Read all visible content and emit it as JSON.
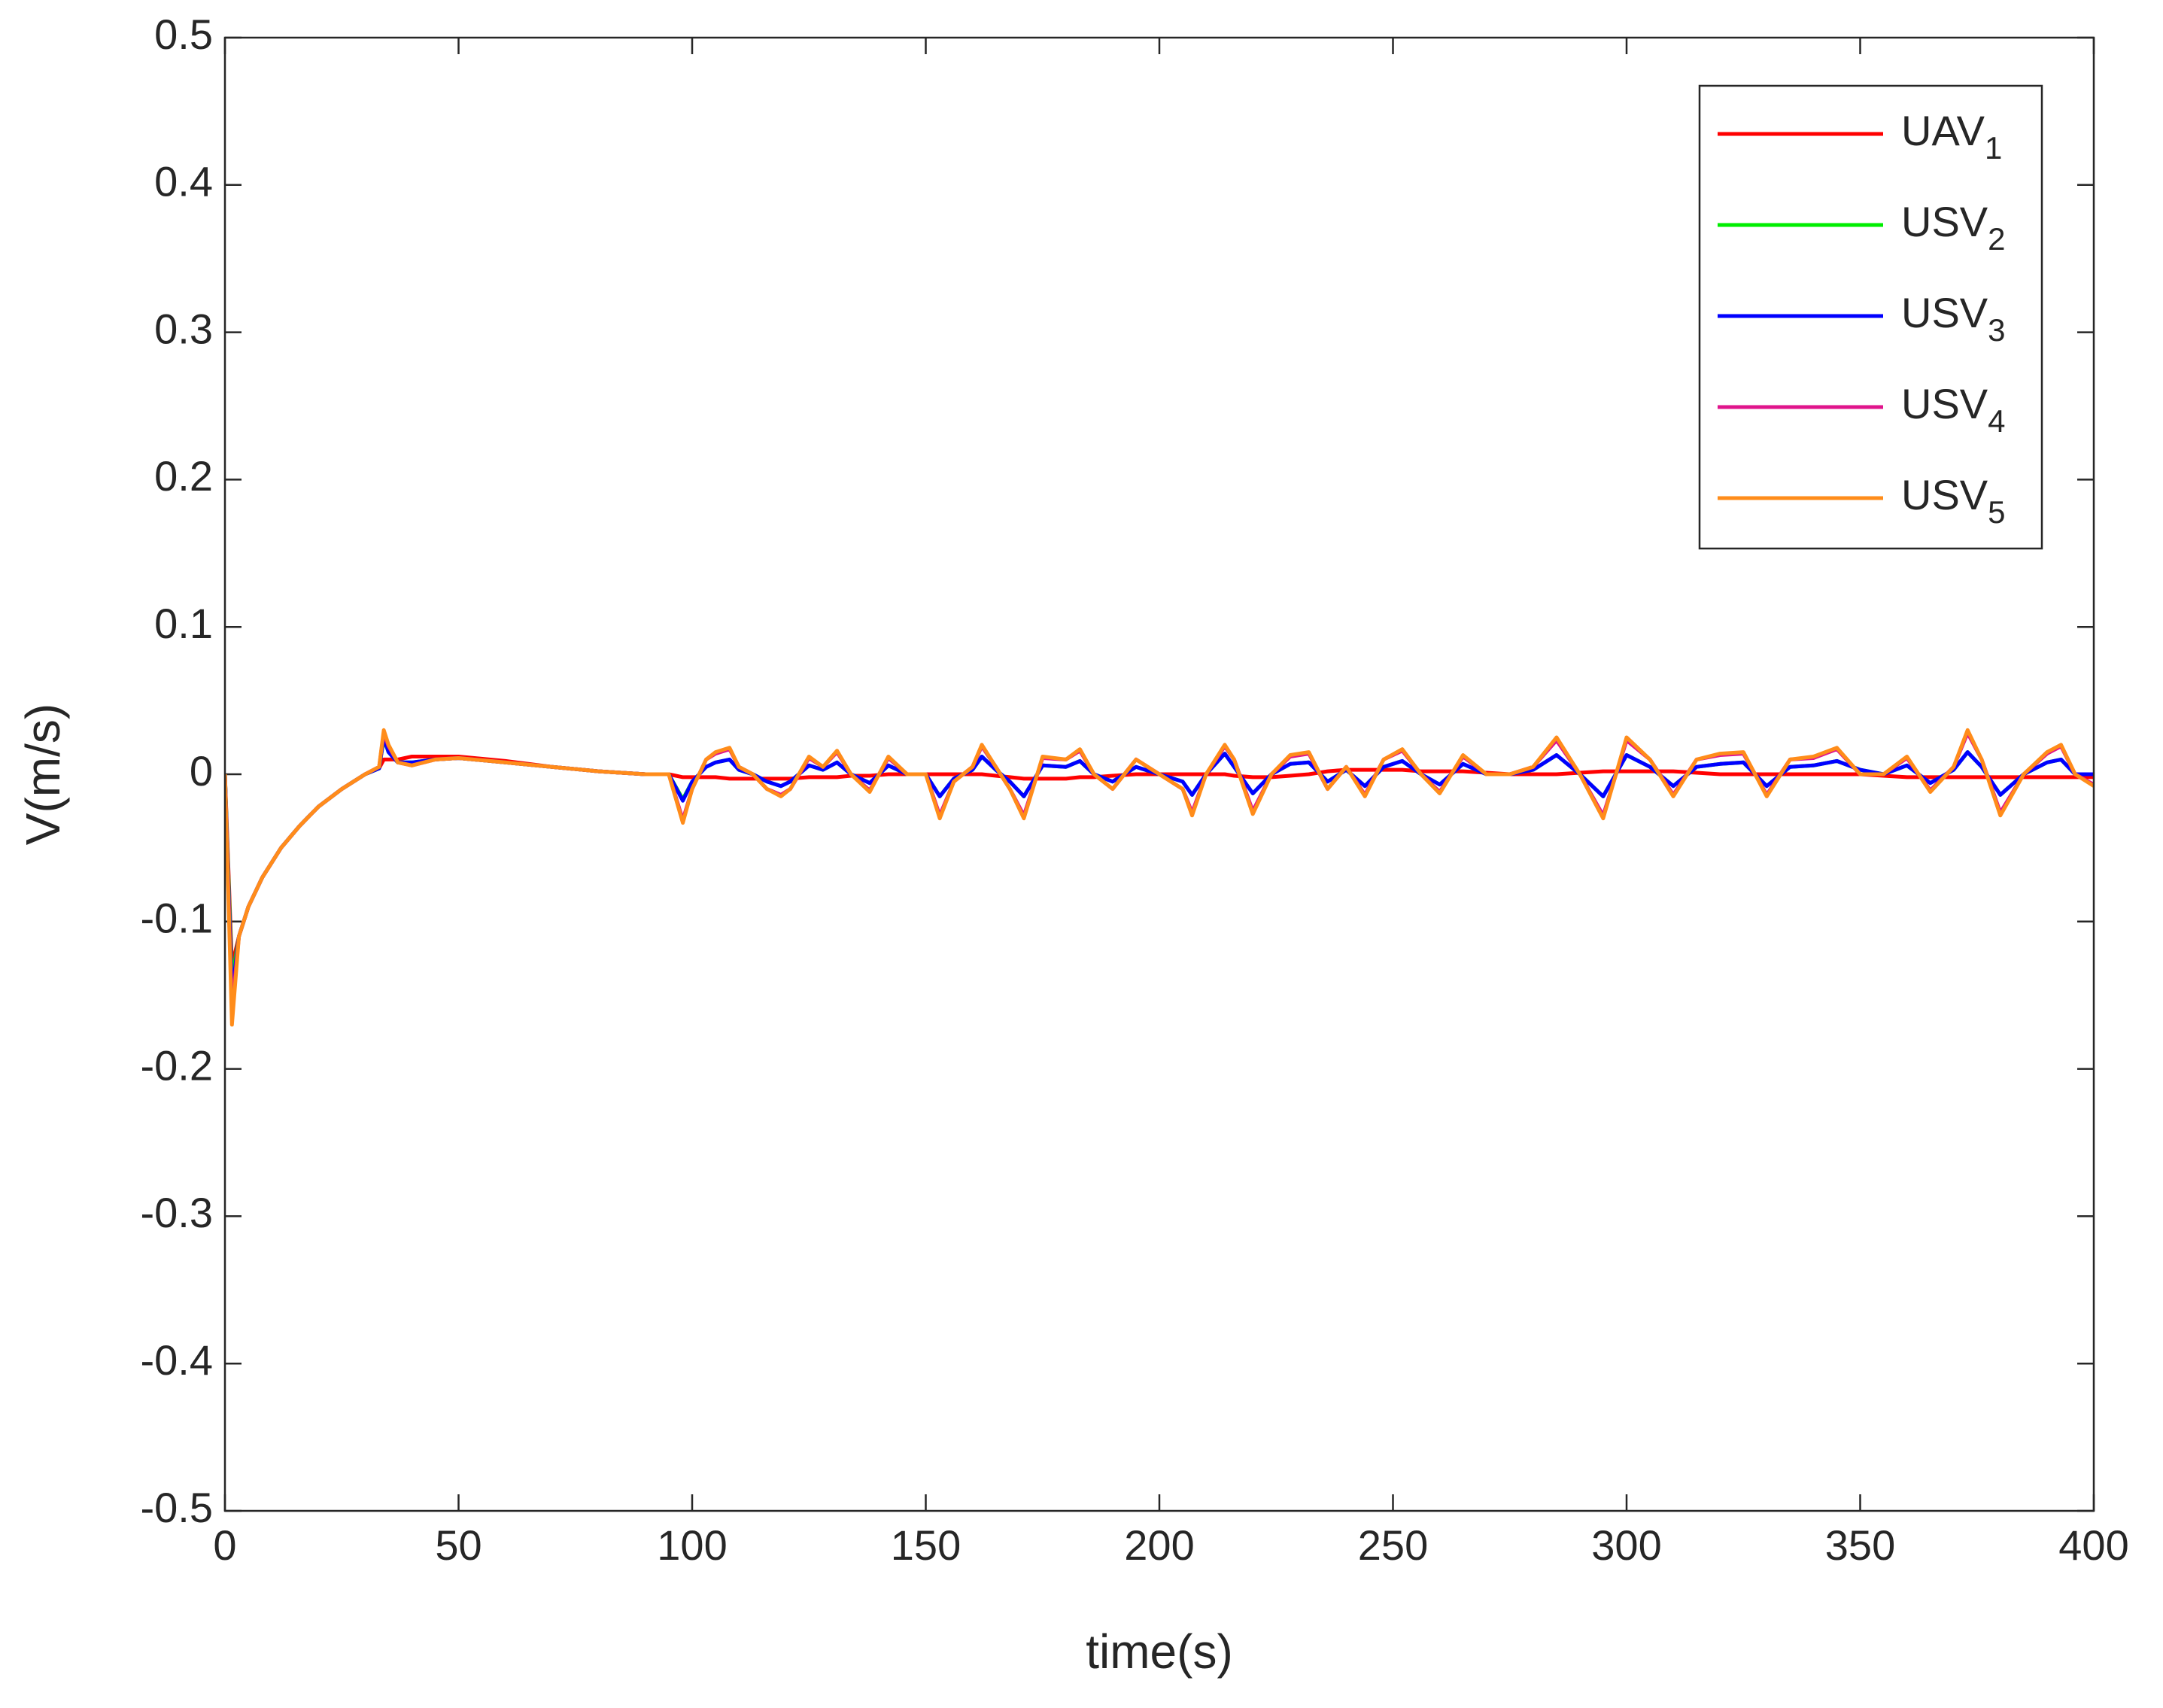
{
  "chart_data": {
    "type": "line",
    "xlabel": "time(s)",
    "ylabel": "V(m/s)",
    "xlim": [
      0,
      400
    ],
    "ylim": [
      -0.5,
      0.5
    ],
    "xticks": [
      0,
      50,
      100,
      150,
      200,
      250,
      300,
      350,
      400
    ],
    "yticks": [
      -0.5,
      -0.4,
      -0.3,
      -0.2,
      -0.1,
      0,
      0.1,
      0.2,
      0.3,
      0.4,
      0.5
    ],
    "legend": "upper right",
    "x": [
      0,
      1.5,
      3,
      5,
      8,
      12,
      16,
      20,
      25,
      30,
      33,
      34,
      35,
      37,
      40,
      45,
      50,
      60,
      70,
      80,
      90,
      95,
      98,
      100,
      103,
      105,
      108,
      110,
      113,
      116,
      119,
      121,
      125,
      128,
      131,
      134,
      138,
      142,
      146,
      150,
      153,
      156,
      160,
      162,
      165,
      168,
      171,
      175,
      180,
      183,
      186,
      190,
      195,
      200,
      205,
      207,
      210,
      214,
      216,
      220,
      224,
      228,
      232,
      236,
      240,
      244,
      248,
      252,
      256,
      260,
      265,
      270,
      275,
      280,
      285,
      290,
      295,
      300,
      305,
      310,
      315,
      320,
      325,
      330,
      335,
      340,
      345,
      350,
      355,
      360,
      365,
      370,
      373,
      376,
      380,
      385,
      390,
      393,
      396,
      400
    ],
    "series": [
      {
        "name": "UAV1",
        "color": "#ff0000",
        "values": [
          0,
          -0.13,
          -0.11,
          -0.09,
          -0.07,
          -0.05,
          -0.035,
          -0.022,
          -0.01,
          0,
          0.004,
          0.01,
          0.01,
          0.01,
          0.012,
          0.012,
          0.012,
          0.009,
          0.005,
          0.002,
          0,
          0,
          -0.002,
          -0.002,
          -0.002,
          -0.002,
          -0.003,
          -0.003,
          -0.003,
          -0.003,
          -0.003,
          -0.003,
          -0.002,
          -0.002,
          -0.002,
          -0.001,
          -0.001,
          0,
          0,
          0,
          0,
          0,
          0,
          0,
          -0.001,
          -0.002,
          -0.003,
          -0.003,
          -0.003,
          -0.002,
          -0.002,
          -0.001,
          0,
          0,
          0,
          0,
          0,
          0,
          -0.001,
          -0.002,
          -0.002,
          -0.001,
          0,
          0.002,
          0.003,
          0.003,
          0.003,
          0.003,
          0.002,
          0.002,
          0.002,
          0.001,
          0,
          0,
          0,
          0.001,
          0.002,
          0.002,
          0.002,
          0.002,
          0.001,
          0,
          0,
          0,
          0,
          0,
          0,
          0,
          -0.001,
          -0.002,
          -0.002,
          -0.002,
          -0.002,
          -0.002,
          -0.002,
          -0.002,
          -0.002,
          -0.002,
          -0.002,
          -0.002
        ]
      },
      {
        "name": "USV2",
        "color": "#00ee00",
        "values": [
          0,
          -0.14,
          -0.11,
          -0.09,
          -0.07,
          -0.05,
          -0.035,
          -0.022,
          -0.01,
          0,
          0.004,
          0.024,
          0.015,
          0.008,
          0.008,
          0.01,
          0.011,
          0.008,
          0.005,
          0.002,
          0,
          0,
          -0.017,
          -0.005,
          0.005,
          0.008,
          0.01,
          0.003,
          0,
          -0.005,
          -0.008,
          -0.005,
          0.006,
          0.003,
          0.008,
          0,
          -0.006,
          0.006,
          0,
          0,
          -0.015,
          -0.003,
          0.003,
          0.012,
          0.003,
          -0.005,
          -0.015,
          0.006,
          0.005,
          0.009,
          0,
          -0.005,
          0.005,
          0,
          -0.005,
          -0.014,
          0,
          0.014,
          0.005,
          -0.013,
          0,
          0.007,
          0.008,
          -0.005,
          0.003,
          -0.008,
          0.005,
          0.009,
          0,
          -0.007,
          0.007,
          0,
          0,
          0.003,
          0.013,
          0,
          -0.015,
          0.013,
          0.005,
          -0.008,
          0.005,
          0.007,
          0.008,
          -0.008,
          0.005,
          0.006,
          0.009,
          0.003,
          0,
          0.006,
          -0.006,
          0.003,
          0.015,
          0.005,
          -0.014,
          0,
          0.008,
          0.01,
          0,
          0
        ]
      },
      {
        "name": "USV3",
        "color": "#0000ff",
        "values": [
          0,
          -0.15,
          -0.11,
          -0.09,
          -0.07,
          -0.05,
          -0.035,
          -0.022,
          -0.01,
          0,
          0.004,
          0.025,
          0.015,
          0.008,
          0.008,
          0.01,
          0.011,
          0.008,
          0.005,
          0.002,
          0,
          0,
          -0.018,
          -0.005,
          0.005,
          0.008,
          0.01,
          0.003,
          0,
          -0.005,
          -0.008,
          -0.005,
          0.006,
          0.003,
          0.008,
          0,
          -0.006,
          0.006,
          0,
          0,
          -0.015,
          -0.003,
          0.003,
          0.012,
          0.003,
          -0.005,
          -0.015,
          0.006,
          0.005,
          0.009,
          0,
          -0.005,
          0.005,
          0,
          -0.005,
          -0.014,
          0,
          0.014,
          0.005,
          -0.013,
          0,
          0.007,
          0.008,
          -0.005,
          0.003,
          -0.008,
          0.005,
          0.009,
          0,
          -0.007,
          0.007,
          0,
          0,
          0.003,
          0.013,
          0,
          -0.015,
          0.013,
          0.005,
          -0.008,
          0.005,
          0.007,
          0.008,
          -0.008,
          0.005,
          0.006,
          0.009,
          0.003,
          0,
          0.006,
          -0.006,
          0.003,
          0.015,
          0.005,
          -0.014,
          0,
          0.008,
          0.01,
          0,
          0
        ]
      },
      {
        "name": "USV4",
        "color": "#e0148c",
        "values": [
          0,
          -0.16,
          -0.11,
          -0.09,
          -0.07,
          -0.05,
          -0.035,
          -0.022,
          -0.01,
          0,
          0.005,
          0.028,
          0.019,
          0.008,
          0.006,
          0.01,
          0.011,
          0.008,
          0.005,
          0.002,
          0,
          0,
          -0.031,
          -0.01,
          0.01,
          0.014,
          0.017,
          0.005,
          0,
          -0.01,
          -0.014,
          -0.01,
          0.011,
          0.005,
          0.015,
          0,
          -0.011,
          0.011,
          0,
          0,
          -0.028,
          -0.005,
          0.005,
          0.019,
          0.005,
          -0.01,
          -0.028,
          0.011,
          0.01,
          0.016,
          0,
          -0.01,
          0.01,
          0,
          -0.01,
          -0.026,
          0,
          0.019,
          0.01,
          -0.025,
          0,
          0.012,
          0.014,
          -0.01,
          0.005,
          -0.014,
          0.01,
          0.016,
          0,
          -0.012,
          0.012,
          0,
          0,
          0.005,
          0.023,
          0,
          -0.028,
          0.023,
          0.01,
          -0.014,
          0.01,
          0.013,
          0.014,
          -0.014,
          0.01,
          0.011,
          0.017,
          0,
          0,
          0.011,
          -0.011,
          0.005,
          0.028,
          0.01,
          -0.026,
          0,
          0.014,
          0.019,
          0,
          -0.007
        ]
      },
      {
        "name": "USV5",
        "color": "#ff8c1a",
        "values": [
          0,
          -0.17,
          -0.11,
          -0.09,
          -0.07,
          -0.05,
          -0.035,
          -0.022,
          -0.01,
          0,
          0.005,
          0.03,
          0.02,
          0.008,
          0.006,
          0.01,
          0.011,
          0.008,
          0.005,
          0.002,
          0,
          0,
          -0.033,
          -0.01,
          0.01,
          0.015,
          0.018,
          0.005,
          0,
          -0.01,
          -0.015,
          -0.01,
          0.012,
          0.005,
          0.016,
          0,
          -0.012,
          0.012,
          0,
          0,
          -0.03,
          -0.005,
          0.005,
          0.02,
          0.005,
          -0.01,
          -0.03,
          0.012,
          0.01,
          0.017,
          0,
          -0.01,
          0.01,
          0,
          -0.01,
          -0.028,
          0,
          0.02,
          0.01,
          -0.027,
          0,
          0.013,
          0.015,
          -0.01,
          0.005,
          -0.015,
          0.01,
          0.017,
          0,
          -0.013,
          0.013,
          0,
          0,
          0.005,
          0.025,
          0,
          -0.03,
          0.025,
          0.01,
          -0.015,
          0.01,
          0.014,
          0.015,
          -0.015,
          0.01,
          0.012,
          0.018,
          0,
          0,
          0.012,
          -0.012,
          0.005,
          0.03,
          0.01,
          -0.028,
          0,
          0.015,
          0.02,
          0,
          -0.008
        ]
      }
    ]
  }
}
